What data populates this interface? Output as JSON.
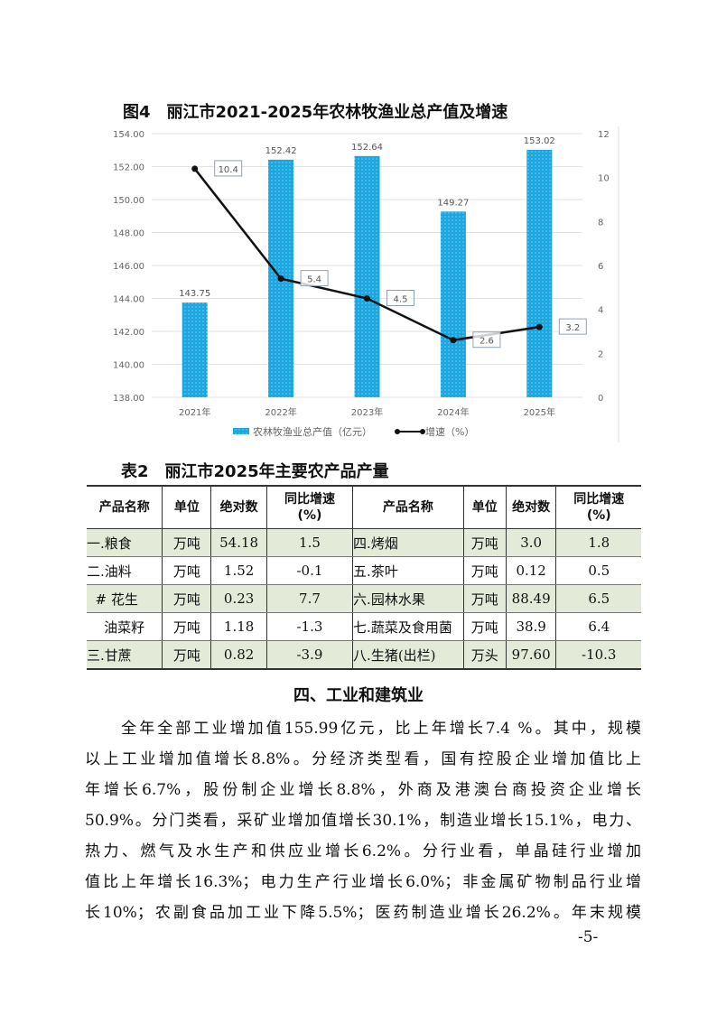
{
  "chart_data": {
    "type": "bar+line",
    "title": "图4　丽江市2021-2025年农林牧渔业总产值及增速",
    "categories": [
      "2021年",
      "2022年",
      "2023年",
      "2024年",
      "2025年"
    ],
    "series": [
      {
        "name": "农林牧渔业总产值（亿元）",
        "type": "bar",
        "axis": "left",
        "values": [
          143.75,
          152.42,
          152.64,
          149.27,
          153.02
        ],
        "labels": [
          "143.75",
          "152.42",
          "152.64",
          "149.27",
          "153.02"
        ],
        "color": "#1aa6df"
      },
      {
        "name": "增速（%）",
        "type": "line",
        "axis": "right",
        "values": [
          10.4,
          5.4,
          4.5,
          2.6,
          3.2
        ],
        "labels": [
          "10.4",
          "5.4",
          "4.5",
          "2.6",
          "3.2"
        ],
        "color": "#111111"
      }
    ],
    "left_axis": {
      "range": [
        138,
        154
      ],
      "ticks": [
        "138.00",
        "140.00",
        "142.00",
        "144.00",
        "146.00",
        "148.00",
        "150.00",
        "152.00",
        "154.00"
      ]
    },
    "right_axis": {
      "range": [
        0,
        12
      ],
      "ticks": [
        "0",
        "2",
        "4",
        "6",
        "8",
        "10",
        "12"
      ]
    },
    "grid": true,
    "legend_position": "bottom"
  },
  "table": {
    "title": "表2　丽江市2025年主要农产品产量",
    "headers": [
      "产品名称",
      "单位",
      "绝对数",
      "同比增速\n(%)",
      "产品名称",
      "单位",
      "绝对数",
      "同比增速\n(%)"
    ],
    "rows": [
      [
        "一.粮食",
        "万吨",
        "54.18",
        "1.5",
        "四.烤烟",
        "万吨",
        "3.0",
        "1.8"
      ],
      [
        "二.油料",
        "万吨",
        "1.52",
        "-0.1",
        "五.茶叶",
        "万吨",
        "0.12",
        "0.5"
      ],
      [
        "  # 花生",
        "万吨",
        "0.23",
        "7.7",
        "六.园林水果",
        "万吨",
        "88.49",
        "6.5"
      ],
      [
        "    油菜籽",
        "万吨",
        "1.18",
        "-1.3",
        "七.蔬菜及食用菌",
        "万吨",
        "38.9",
        "6.4"
      ],
      [
        "三.甘蔗",
        "万吨",
        "0.82",
        "-3.9",
        "八.生猪(出栏)",
        "万头",
        "97.60",
        "-10.3"
      ]
    ]
  },
  "section": {
    "heading": "四、工业和建筑业",
    "lines": [
      "　　全年全部工业增加值155.99亿元，比上年增长7.4 %。其中，规模",
      "以上工业增加值增长8.8%。分经济类型看，国有控股企业增加值比上",
      "年增长6.7%，股份制企业增长8.8%，外商及港澳台商投资企业增长",
      "50.9%。分门类看，采矿业增加值增长30.1%，制造业增长15.1%，电力、",
      "热力、燃气及水生产和供应业增长6.2%。分行业看，单晶硅行业增加",
      "值比上年增长16.3%；电力生产行业增长6.0%；非金属矿物制品行业增",
      "长10%；农副食品加工业下降5.5%；医药制造业增长26.2%。年末规模"
    ]
  },
  "page_number": "-5-"
}
